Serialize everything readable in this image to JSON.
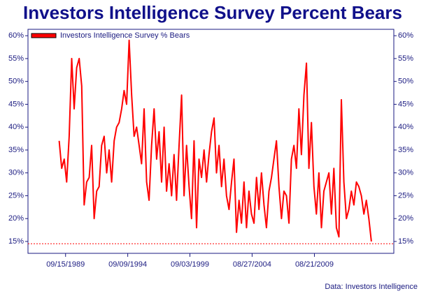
{
  "chart_data": {
    "type": "line",
    "title": "Investors Intelligence Survey Percent Bears",
    "source": "Data: Investors Intelligence",
    "legend": "top-left",
    "x": [
      1989.2,
      1989.4,
      1989.6,
      1989.8,
      1990.0,
      1990.2,
      1990.4,
      1990.6,
      1990.8,
      1991.0,
      1991.2,
      1991.4,
      1991.6,
      1991.8,
      1992.0,
      1992.2,
      1992.4,
      1992.6,
      1992.8,
      1993.0,
      1993.2,
      1993.4,
      1993.6,
      1993.8,
      1994.0,
      1994.2,
      1994.4,
      1994.6,
      1994.8,
      1995.0,
      1995.2,
      1995.4,
      1995.6,
      1995.8,
      1996.0,
      1996.2,
      1996.4,
      1996.6,
      1996.8,
      1997.0,
      1997.2,
      1997.4,
      1997.6,
      1997.8,
      1998.0,
      1998.2,
      1998.4,
      1998.6,
      1998.8,
      1999.0,
      1999.2,
      1999.4,
      1999.6,
      1999.8,
      2000.0,
      2000.2,
      2000.4,
      2000.6,
      2000.8,
      2001.0,
      2001.2,
      2001.4,
      2001.6,
      2001.8,
      2002.0,
      2002.2,
      2002.4,
      2002.6,
      2002.8,
      2003.0,
      2003.2,
      2003.4,
      2003.6,
      2003.8,
      2004.0,
      2004.2,
      2004.4,
      2004.6,
      2004.8,
      2005.0,
      2005.2,
      2005.4,
      2005.6,
      2005.8,
      2006.0,
      2006.2,
      2006.4,
      2006.6,
      2006.8,
      2007.0,
      2007.2,
      2007.4,
      2007.6,
      2007.8,
      2008.0,
      2008.2,
      2008.4,
      2008.6,
      2008.8,
      2009.0,
      2009.2,
      2009.4,
      2009.6,
      2009.8,
      2010.0,
      2010.2,
      2010.4,
      2010.6,
      2010.8,
      2011.0,
      2011.2,
      2011.4,
      2011.6,
      2011.8,
      2012.0,
      2012.2,
      2012.4,
      2012.6,
      2012.8,
      2013.0,
      2013.2,
      2013.4,
      2013.6,
      2013.8,
      2014.0,
      2014.2
    ],
    "series": [
      {
        "name": "Investors Intelligence Survey % Bears",
        "color": "#ff0000",
        "values": [
          37,
          31,
          33,
          28,
          38,
          55,
          44,
          53,
          55,
          49,
          23,
          28,
          29,
          36,
          20,
          26,
          27,
          36,
          38,
          30,
          35,
          28,
          37,
          40,
          41,
          44,
          48,
          45,
          59,
          47,
          38,
          40,
          36,
          32,
          44,
          28,
          24,
          36,
          44,
          33,
          39,
          28,
          40,
          26,
          32,
          25,
          34,
          24,
          36,
          47,
          25,
          36,
          27,
          20,
          37,
          18,
          33,
          29,
          35,
          28,
          34,
          39,
          42,
          30,
          36,
          27,
          33,
          25,
          22,
          28,
          33,
          17,
          24,
          19,
          28,
          18,
          26,
          21,
          19,
          29,
          22,
          30,
          23,
          18,
          26,
          29,
          33,
          37,
          27,
          20,
          26,
          25,
          19,
          33,
          36,
          31,
          44,
          34,
          47,
          54,
          31,
          41,
          27,
          21,
          30,
          18,
          26,
          28,
          30,
          21,
          31,
          18,
          16,
          46,
          28,
          20,
          22,
          26,
          23,
          28,
          27,
          25,
          21,
          24,
          20,
          15
        ]
      }
    ],
    "ref_line": 14.5,
    "xlim": [
      1986.7,
      2016.0
    ],
    "xticks": [
      {
        "value": 1989.71,
        "label": "09/15/1989"
      },
      {
        "value": 1994.69,
        "label": "09/09/1994"
      },
      {
        "value": 1999.67,
        "label": "09/03/1999"
      },
      {
        "value": 2004.65,
        "label": "08/27/2004"
      },
      {
        "value": 2009.64,
        "label": "08/21/2009"
      }
    ],
    "ylim": [
      12.4,
      61.4
    ],
    "yticks": [
      {
        "value": 15,
        "label": "15%"
      },
      {
        "value": 20,
        "label": "20%"
      },
      {
        "value": 25,
        "label": "25%"
      },
      {
        "value": 30,
        "label": "30%"
      },
      {
        "value": 35,
        "label": "35%"
      },
      {
        "value": 40,
        "label": "40%"
      },
      {
        "value": 45,
        "label": "45%"
      },
      {
        "value": 50,
        "label": "50%"
      },
      {
        "value": 55,
        "label": "55%"
      },
      {
        "value": 60,
        "label": "60%"
      }
    ]
  }
}
